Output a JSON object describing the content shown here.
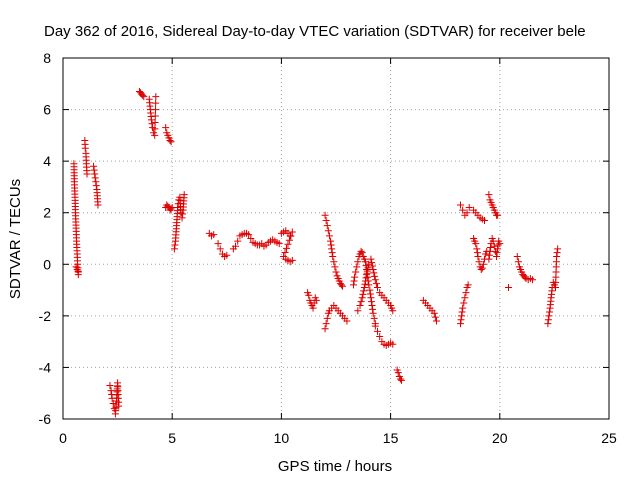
{
  "chart_data": {
    "type": "scatter",
    "title": "Day 362 of 2016, Sidereal Day-to-day VTEC variation (SDTVAR) for receiver bele",
    "xlabel": "GPS time / hours",
    "ylabel": "SDTVAR / TECUs",
    "xlim": [
      0,
      25
    ],
    "ylim": [
      -6,
      8
    ],
    "xticks": [
      0,
      5,
      10,
      15,
      20,
      25
    ],
    "yticks": [
      -6,
      -4,
      -2,
      0,
      2,
      4,
      6,
      8
    ],
    "xtick_labels": [
      "0",
      "5",
      "10",
      "15",
      "20",
      "25"
    ],
    "ytick_labels": [
      "-6",
      "-4",
      "-2",
      "0",
      "2",
      "4",
      "6",
      "8"
    ],
    "grid": true,
    "marker": "+",
    "color": "#dd0000",
    "segments": [
      {
        "x": [
          0.5,
          0.52,
          0.55,
          0.57,
          0.6,
          0.62,
          0.65,
          0.67,
          0.7
        ],
        "y": [
          3.9,
          3.2,
          2.6,
          2.0,
          1.4,
          0.9,
          0.4,
          0.0,
          -0.4
        ]
      },
      {
        "x": [
          0.6,
          0.65,
          0.7
        ],
        "y": [
          -0.1,
          -0.2,
          -0.3
        ]
      },
      {
        "x": [
          1.0,
          1.02,
          1.05,
          1.07,
          1.1
        ],
        "y": [
          4.8,
          4.5,
          4.3,
          3.9,
          3.5
        ]
      },
      {
        "x": [
          1.4,
          1.45,
          1.5,
          1.55,
          1.6
        ],
        "y": [
          3.8,
          3.5,
          3.2,
          2.9,
          2.3
        ]
      },
      {
        "x": [
          2.15,
          2.2,
          2.25,
          2.3,
          2.35,
          2.4,
          2.45,
          2.5,
          2.55
        ],
        "y": [
          -4.7,
          -4.9,
          -5.2,
          -5.4,
          -5.6,
          -5.8,
          -5.3,
          -4.6,
          -5.5
        ]
      },
      {
        "x": [
          3.5,
          3.55,
          3.6,
          3.65,
          3.7
        ],
        "y": [
          6.7,
          6.65,
          6.6,
          6.55,
          6.5
        ]
      },
      {
        "x": [
          3.95,
          4.0,
          4.05,
          4.1,
          4.15,
          4.2,
          4.25
        ],
        "y": [
          6.4,
          6.0,
          5.6,
          5.3,
          5.1,
          5.0,
          6.5
        ]
      },
      {
        "x": [
          4.7,
          4.75,
          4.8,
          4.85,
          4.9,
          4.95
        ],
        "y": [
          5.3,
          5.1,
          5.0,
          4.9,
          4.8,
          4.75
        ]
      },
      {
        "x": [
          4.7,
          4.75,
          4.8,
          4.85,
          4.9,
          4.95,
          5.0
        ],
        "y": [
          2.2,
          2.3,
          2.25,
          2.2,
          2.1,
          2.15,
          2.2
        ]
      },
      {
        "x": [
          5.1,
          5.15,
          5.2,
          5.25,
          5.3,
          5.35,
          5.4,
          5.45,
          5.5,
          5.55
        ],
        "y": [
          0.6,
          0.9,
          1.5,
          2.2,
          2.5,
          2.6,
          2.0,
          1.8,
          2.1,
          2.7
        ]
      },
      {
        "x": [
          6.7,
          6.8,
          6.9
        ],
        "y": [
          1.2,
          1.1,
          1.15
        ]
      },
      {
        "x": [
          7.1,
          7.2,
          7.3,
          7.4,
          7.5
        ],
        "y": [
          0.8,
          0.6,
          0.4,
          0.3,
          0.35
        ]
      },
      {
        "x": [
          7.8,
          7.9,
          8.0,
          8.1,
          8.2,
          8.3,
          8.4,
          8.5,
          8.6,
          8.7,
          8.8,
          8.9,
          9.0,
          9.1,
          9.2,
          9.3,
          9.4,
          9.5,
          9.6,
          9.7,
          9.8,
          9.9
        ],
        "y": [
          0.6,
          0.7,
          0.9,
          1.1,
          1.15,
          1.2,
          1.2,
          1.15,
          1.0,
          0.85,
          0.8,
          0.75,
          0.75,
          0.8,
          0.7,
          0.75,
          0.85,
          0.9,
          0.95,
          0.9,
          0.85,
          0.8
        ]
      },
      {
        "x": [
          10.0,
          10.1,
          10.2,
          10.3,
          10.4,
          10.5,
          10.1,
          10.2,
          10.3,
          10.4,
          10.5
        ],
        "y": [
          1.2,
          1.25,
          1.3,
          1.2,
          1.1,
          1.25,
          0.3,
          0.2,
          0.15,
          0.1,
          0.15
        ]
      },
      {
        "x": [
          11.2,
          11.25,
          11.3,
          11.35,
          11.4,
          11.45,
          11.5,
          11.55,
          11.6
        ],
        "y": [
          -1.1,
          -1.2,
          -1.4,
          -1.5,
          -1.6,
          -1.7,
          -1.5,
          -1.3,
          -1.4
        ]
      },
      {
        "x": [
          12.0,
          12.05,
          12.1,
          12.15,
          12.2,
          12.25,
          12.3,
          12.35,
          12.4,
          12.45,
          12.5,
          12.55,
          12.6,
          12.65,
          12.7,
          12.75,
          12.8
        ],
        "y": [
          1.9,
          1.7,
          1.5,
          1.3,
          1.1,
          0.9,
          0.6,
          0.3,
          0.1,
          -0.1,
          -0.3,
          -0.45,
          -0.55,
          -0.65,
          -0.75,
          -0.8,
          -0.85
        ]
      },
      {
        "x": [
          12.0,
          12.05,
          12.1,
          12.15,
          12.2,
          12.3,
          12.4,
          12.5,
          12.6,
          12.7,
          12.8,
          12.9,
          13.0
        ],
        "y": [
          -2.5,
          -2.3,
          -2.1,
          -1.9,
          -1.8,
          -1.7,
          -1.6,
          -1.7,
          -1.8,
          -1.9,
          -2.0,
          -2.1,
          -2.2
        ]
      },
      {
        "x": [
          13.3,
          13.35,
          13.4,
          13.45,
          13.5,
          13.55,
          13.6,
          13.65,
          13.7,
          13.75,
          13.8,
          13.85,
          13.9,
          13.95,
          14.0,
          14.05,
          14.1,
          14.15,
          14.2,
          14.25,
          14.3
        ],
        "y": [
          -0.8,
          -0.5,
          -0.3,
          -0.1,
          0.1,
          0.3,
          0.4,
          0.5,
          0.45,
          0.3,
          0.2,
          0.1,
          -0.2,
          -0.5,
          -0.8,
          -1.0,
          -1.3,
          -1.6,
          -1.9,
          -2.1,
          -2.3
        ]
      },
      {
        "x": [
          13.5,
          13.6,
          13.7,
          13.8,
          13.9,
          14.0,
          14.1,
          14.2,
          14.3,
          14.4,
          14.5,
          14.6,
          14.7,
          14.8,
          14.9,
          15.0,
          15.05,
          15.1
        ],
        "y": [
          -1.8,
          -1.6,
          -1.3,
          -0.9,
          -0.4,
          0.0,
          0.2,
          -0.2,
          -0.6,
          -0.9,
          -1.1,
          -1.2,
          -1.3,
          -1.4,
          -1.5,
          -1.6,
          -1.7,
          -1.8
        ]
      },
      {
        "x": [
          14.3,
          14.4,
          14.5,
          14.6,
          14.7,
          14.8,
          14.9,
          15.0,
          15.1
        ],
        "y": [
          -2.4,
          -2.6,
          -2.8,
          -3.0,
          -3.1,
          -3.15,
          -3.1,
          -3.05,
          -3.1
        ]
      },
      {
        "x": [
          15.3,
          15.35,
          15.4,
          15.45,
          15.5
        ],
        "y": [
          -4.1,
          -4.2,
          -4.35,
          -4.45,
          -4.5
        ]
      },
      {
        "x": [
          16.5,
          16.6,
          16.7,
          16.8,
          16.9,
          17.0,
          17.1
        ],
        "y": [
          -1.4,
          -1.5,
          -1.6,
          -1.7,
          -1.8,
          -1.9,
          -2.2
        ]
      },
      {
        "x": [
          18.2,
          18.25,
          18.3,
          18.35,
          18.4,
          18.45,
          18.5,
          18.55
        ],
        "y": [
          -2.3,
          -2.0,
          -1.7,
          -1.5,
          -1.3,
          -1.1,
          -0.9,
          -0.8
        ]
      },
      {
        "x": [
          18.2,
          18.3,
          18.4,
          18.5,
          18.6
        ],
        "y": [
          2.3,
          2.1,
          1.9,
          2.0,
          2.2
        ]
      },
      {
        "x": [
          18.8,
          18.9,
          19.0,
          19.1,
          19.2,
          19.3
        ],
        "y": [
          2.1,
          2.0,
          1.9,
          1.8,
          1.75,
          1.7
        ]
      },
      {
        "x": [
          18.8,
          18.85,
          18.9,
          18.95,
          19.0,
          19.05,
          19.1,
          19.15,
          19.2,
          19.25,
          19.3,
          19.35,
          19.4
        ],
        "y": [
          1.0,
          0.9,
          0.8,
          0.6,
          0.3,
          0.1,
          -0.1,
          -0.2,
          -0.15,
          0.0,
          0.2,
          0.4,
          0.5
        ]
      },
      {
        "x": [
          19.5,
          19.55,
          19.6,
          19.65,
          19.7,
          19.75,
          19.8,
          19.85,
          19.9
        ],
        "y": [
          2.7,
          2.5,
          2.4,
          2.3,
          2.2,
          2.1,
          2.0,
          1.9,
          1.9
        ]
      },
      {
        "x": [
          19.5,
          19.55,
          19.6,
          19.65,
          19.7,
          19.75,
          19.8,
          19.85,
          19.9,
          19.95,
          20.0
        ],
        "y": [
          0.2,
          0.5,
          0.8,
          1.0,
          0.9,
          0.7,
          0.5,
          0.3,
          0.6,
          0.9,
          0.8
        ]
      },
      {
        "x": [
          20.4
        ],
        "y": [
          -0.9
        ]
      },
      {
        "x": [
          20.8,
          20.85,
          20.9,
          20.95,
          21.0,
          21.05,
          21.1,
          21.15,
          21.2,
          21.3,
          21.4,
          21.5
        ],
        "y": [
          0.3,
          0.1,
          -0.1,
          -0.2,
          -0.3,
          -0.4,
          -0.45,
          -0.5,
          -0.55,
          -0.6,
          -0.55,
          -0.6
        ]
      },
      {
        "x": [
          22.2,
          22.25,
          22.3,
          22.35,
          22.4,
          22.45,
          22.5,
          22.55,
          22.6,
          22.65
        ],
        "y": [
          -2.3,
          -2.0,
          -1.7,
          -1.3,
          -0.9,
          -0.7,
          -0.8,
          -0.9,
          0.3,
          0.6
        ]
      }
    ]
  }
}
